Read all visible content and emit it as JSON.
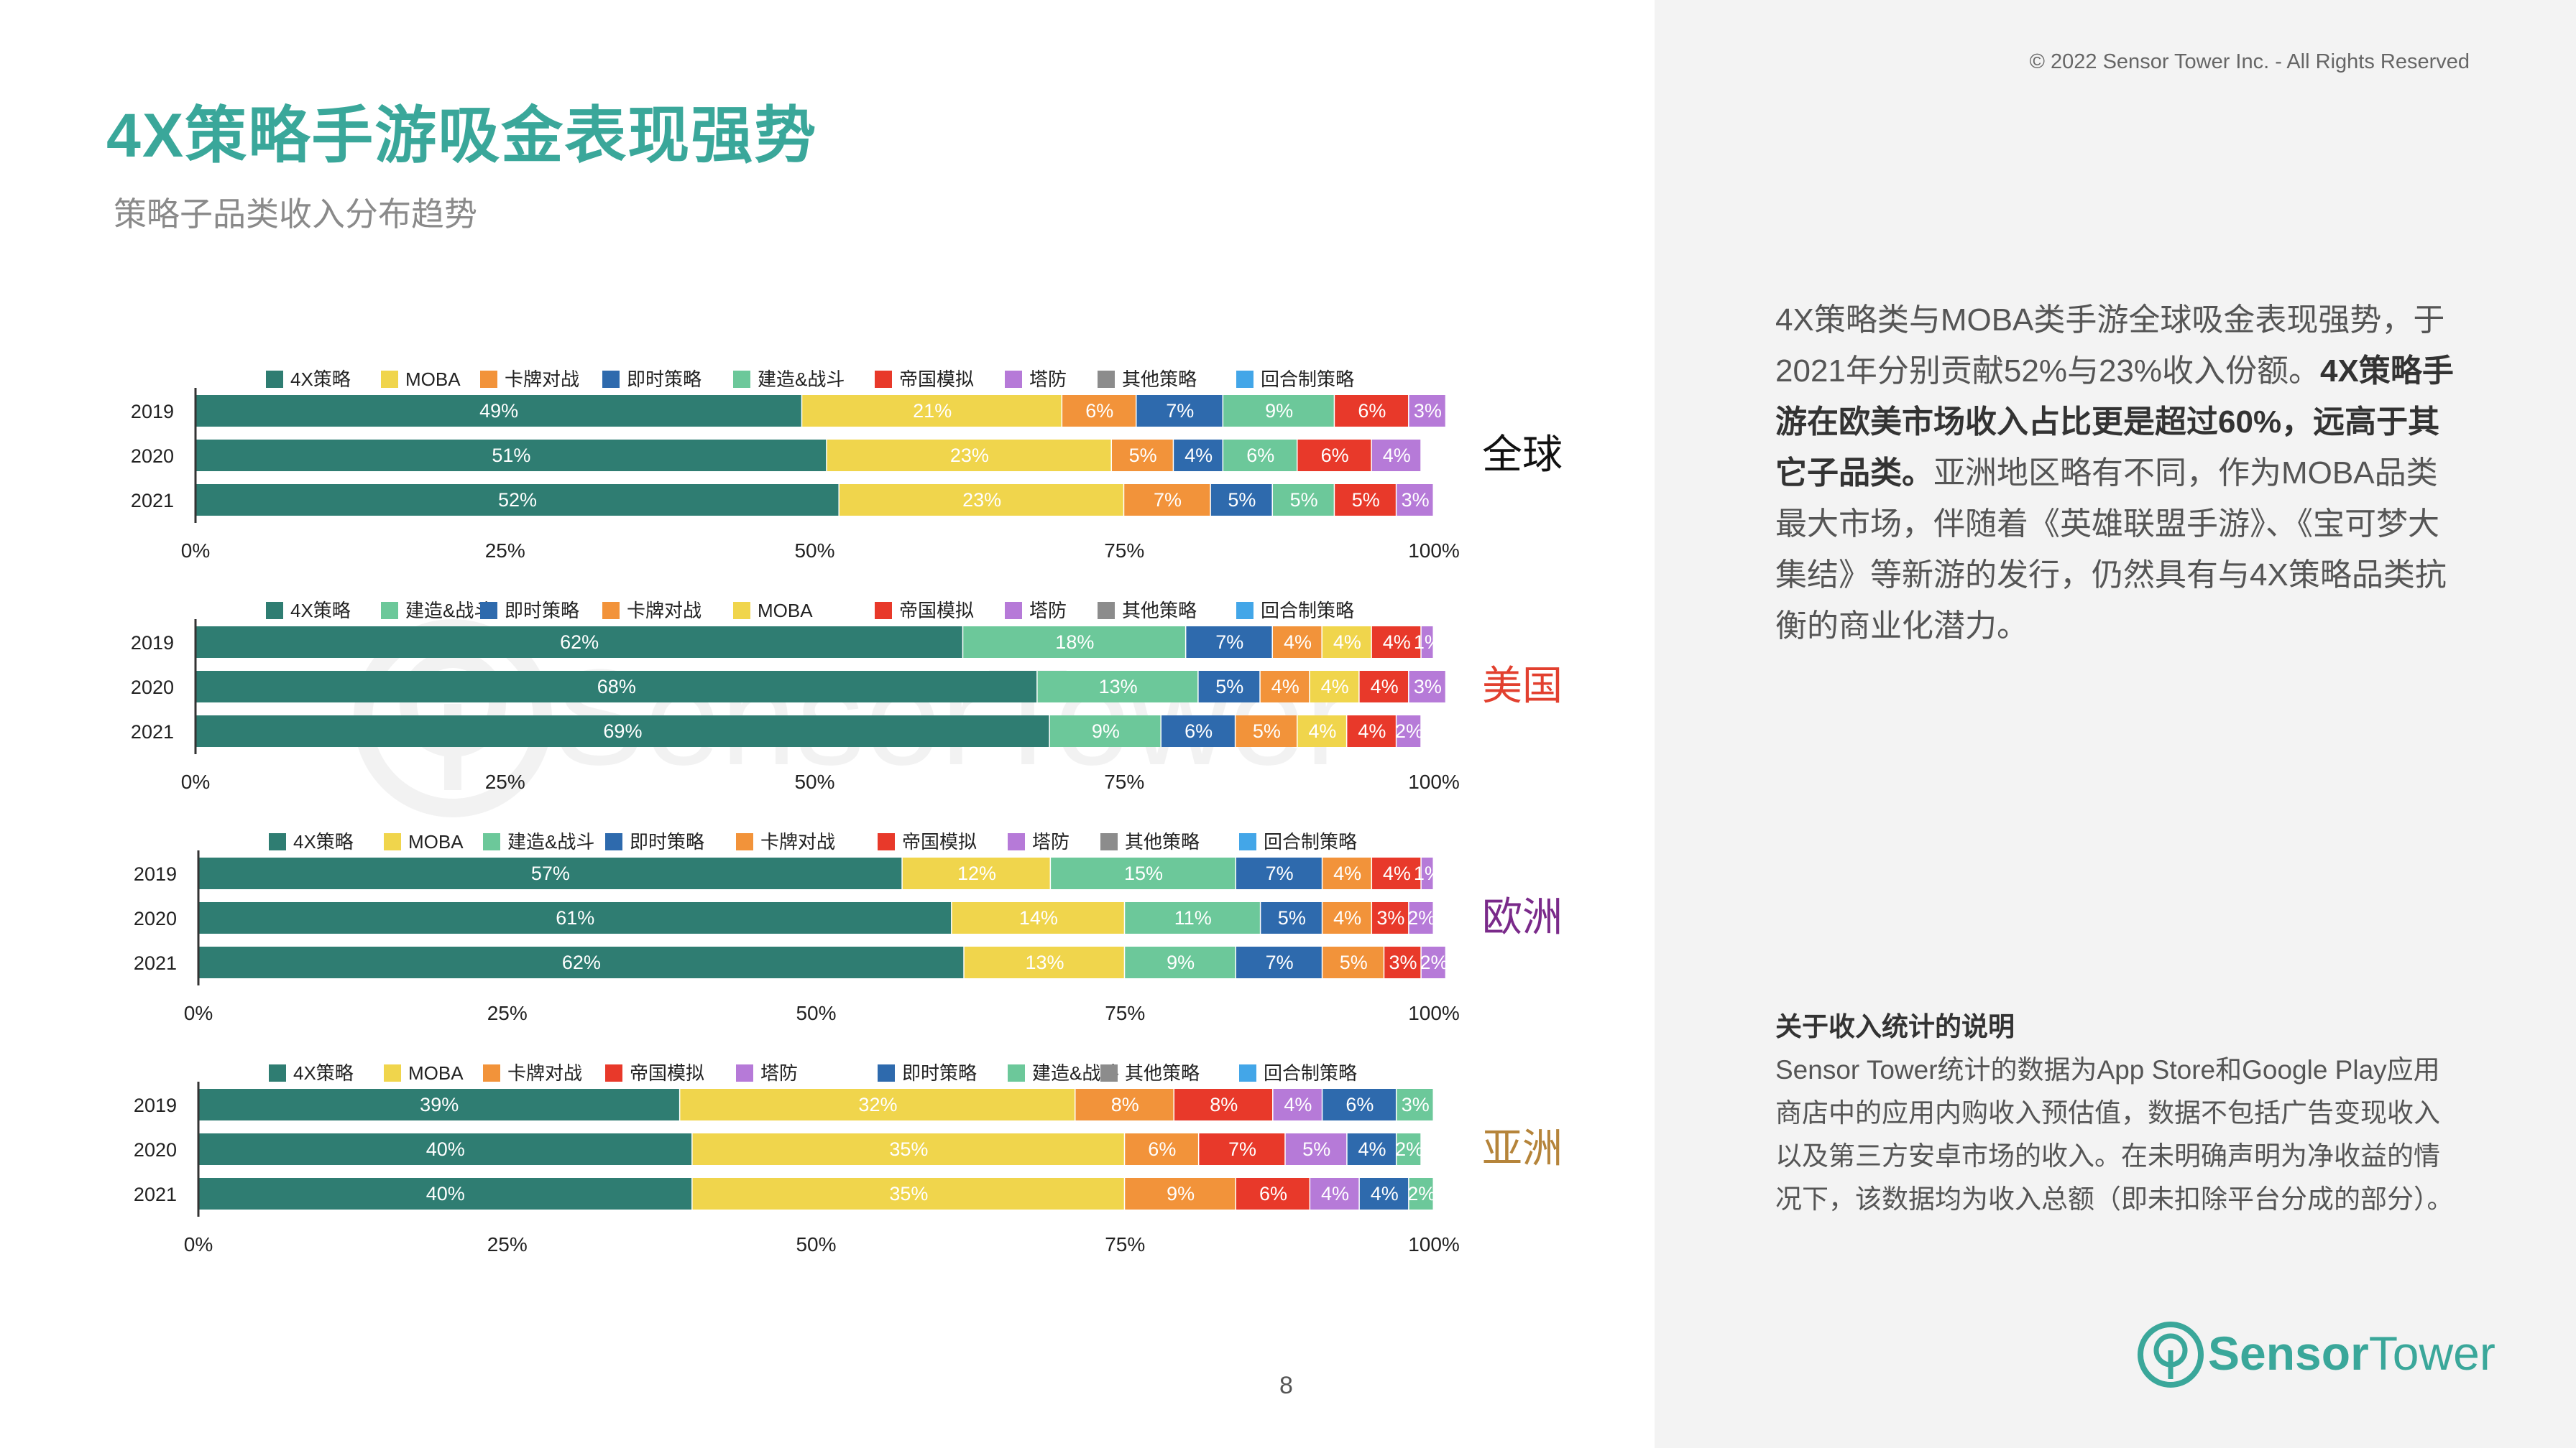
{
  "header": {
    "title": "4X策略手游吸金表现强势",
    "subtitle": "策略子品类收入分布趋势",
    "copyright": "© 2022 Sensor Tower Inc. - All Rights Reserved"
  },
  "description": {
    "part1": "4X策略类与MOBA类手游全球吸金表现强势，于2021年分别贡献52%与23%收入份额。",
    "bold": "4X策略手游在欧美市场收入占比更是超过60%，远高于其它子品类。",
    "part2": "亚洲地区略有不同，作为MOBA品类最大市场，伴随着《英雄联盟手游》、《宝可梦大集结》等新游的发行，仍然具有与4X策略品类抗衡的商业化潜力。"
  },
  "note": {
    "title": "关于收入统计的说明",
    "body": "Sensor Tower统计的数据为App Store和Google Play应用商店中的应用内购收入预估值，数据不包括广告变现收入以及第三方安卓市场的收入。在未明确声明为净收益的情况下，该数据均为收入总额（即未扣除平台分成的部分）。"
  },
  "page_number": "8",
  "logo": {
    "text_bold": "Sensor",
    "text_light": "Tower",
    "icon": "sensor-tower-logo-icon"
  },
  "watermark": {
    "text": "SensorTower"
  },
  "colors": {
    "4X策略": "#2f7d72",
    "MOBA": "#f0d54c",
    "卡牌对战": "#f2933a",
    "即时策略": "#2e6aad",
    "建造&战斗": "#6cc89a",
    "帝国模拟": "#e8392a",
    "塔防": "#b67ad8",
    "其他策略": "#8c8c8c",
    "回合制策略": "#43a6e8"
  },
  "chart_data": [
    {
      "type": "bar",
      "orientation": "horizontal-stacked-100",
      "region": "全球",
      "region_color": "#111111",
      "legend": [
        "4X策略",
        "MOBA",
        "卡牌对战",
        "即时策略",
        "建造&战斗",
        "帝国模拟",
        "塔防",
        "其他策略",
        "回合制策略"
      ],
      "categories": [
        "2019",
        "2020",
        "2021"
      ],
      "series": [
        {
          "name": "4X策略",
          "values": [
            49,
            51,
            52
          ]
        },
        {
          "name": "MOBA",
          "values": [
            21,
            23,
            23
          ]
        },
        {
          "name": "卡牌对战",
          "values": [
            6,
            5,
            7
          ]
        },
        {
          "name": "即时策略",
          "values": [
            7,
            4,
            5
          ]
        },
        {
          "name": "建造&战斗",
          "values": [
            9,
            6,
            5
          ]
        },
        {
          "name": "帝国模拟",
          "values": [
            6,
            6,
            5
          ]
        },
        {
          "name": "塔防",
          "values": [
            3,
            4,
            3
          ]
        },
        {
          "name": "其他策略",
          "values": [
            0,
            0,
            0
          ]
        },
        {
          "name": "回合制策略",
          "values": [
            0,
            0,
            0
          ]
        }
      ],
      "xticks": [
        "0%",
        "25%",
        "50%",
        "75%",
        "100%"
      ],
      "xlim": [
        0,
        100
      ]
    },
    {
      "type": "bar",
      "orientation": "horizontal-stacked-100",
      "region": "美国",
      "region_color": "#e2402f",
      "legend": [
        "4X策略",
        "建造&战斗",
        "即时策略",
        "卡牌对战",
        "MOBA",
        "帝国模拟",
        "塔防",
        "其他策略",
        "回合制策略"
      ],
      "categories": [
        "2019",
        "2020",
        "2021"
      ],
      "series": [
        {
          "name": "4X策略",
          "values": [
            62,
            68,
            69
          ]
        },
        {
          "name": "建造&战斗",
          "values": [
            18,
            13,
            9
          ]
        },
        {
          "name": "即时策略",
          "values": [
            7,
            5,
            6
          ]
        },
        {
          "name": "卡牌对战",
          "values": [
            4,
            4,
            5
          ]
        },
        {
          "name": "MOBA",
          "values": [
            4,
            4,
            4
          ]
        },
        {
          "name": "帝国模拟",
          "values": [
            4,
            4,
            4
          ]
        },
        {
          "name": "塔防",
          "values": [
            1,
            3,
            2
          ]
        },
        {
          "name": "其他策略",
          "values": [
            0,
            0,
            0
          ]
        },
        {
          "name": "回合制策略",
          "values": [
            0,
            0,
            0
          ]
        }
      ],
      "xticks": [
        "0%",
        "25%",
        "50%",
        "75%",
        "100%"
      ],
      "xlim": [
        0,
        100
      ]
    },
    {
      "type": "bar",
      "orientation": "horizontal-stacked-100",
      "region": "欧洲",
      "region_color": "#7a2a8a",
      "legend": [
        "4X策略",
        "MOBA",
        "建造&战斗",
        "即时策略",
        "卡牌对战",
        "帝国模拟",
        "塔防",
        "其他策略",
        "回合制策略"
      ],
      "categories": [
        "2019",
        "2020",
        "2021"
      ],
      "series": [
        {
          "name": "4X策略",
          "values": [
            57,
            61,
            62
          ]
        },
        {
          "name": "MOBA",
          "values": [
            12,
            14,
            13
          ]
        },
        {
          "name": "建造&战斗",
          "values": [
            15,
            11,
            9
          ]
        },
        {
          "name": "即时策略",
          "values": [
            7,
            5,
            7
          ]
        },
        {
          "name": "卡牌对战",
          "values": [
            4,
            4,
            5
          ]
        },
        {
          "name": "帝国模拟",
          "values": [
            4,
            3,
            3
          ]
        },
        {
          "name": "塔防",
          "values": [
            1,
            2,
            2
          ]
        },
        {
          "name": "其他策略",
          "values": [
            0,
            0,
            0
          ]
        },
        {
          "name": "回合制策略",
          "values": [
            0,
            0,
            0
          ]
        }
      ],
      "xticks": [
        "0%",
        "25%",
        "50%",
        "75%",
        "100%"
      ],
      "xlim": [
        0,
        100
      ]
    },
    {
      "type": "bar",
      "orientation": "horizontal-stacked-100",
      "region": "亚洲",
      "region_color": "#b5843a",
      "legend": [
        "4X策略",
        "MOBA",
        "卡牌对战",
        "帝国模拟",
        "塔防",
        "即时策略",
        "建造&战斗",
        "其他策略",
        "回合制策略"
      ],
      "categories": [
        "2019",
        "2020",
        "2021"
      ],
      "series": [
        {
          "name": "4X策略",
          "values": [
            39,
            40,
            40
          ]
        },
        {
          "name": "MOBA",
          "values": [
            32,
            35,
            35
          ]
        },
        {
          "name": "卡牌对战",
          "values": [
            8,
            6,
            9
          ]
        },
        {
          "name": "帝国模拟",
          "values": [
            8,
            7,
            6
          ]
        },
        {
          "name": "塔防",
          "values": [
            4,
            5,
            4
          ]
        },
        {
          "name": "即时策略",
          "values": [
            6,
            4,
            4
          ]
        },
        {
          "name": "建造&战斗",
          "values": [
            3,
            2,
            2
          ]
        },
        {
          "name": "其他策略",
          "values": [
            0,
            0,
            0
          ]
        },
        {
          "name": "回合制策略",
          "values": [
            0,
            0,
            0
          ]
        }
      ],
      "xticks": [
        "0%",
        "25%",
        "50%",
        "75%",
        "100%"
      ],
      "xlim": [
        0,
        100
      ]
    }
  ]
}
